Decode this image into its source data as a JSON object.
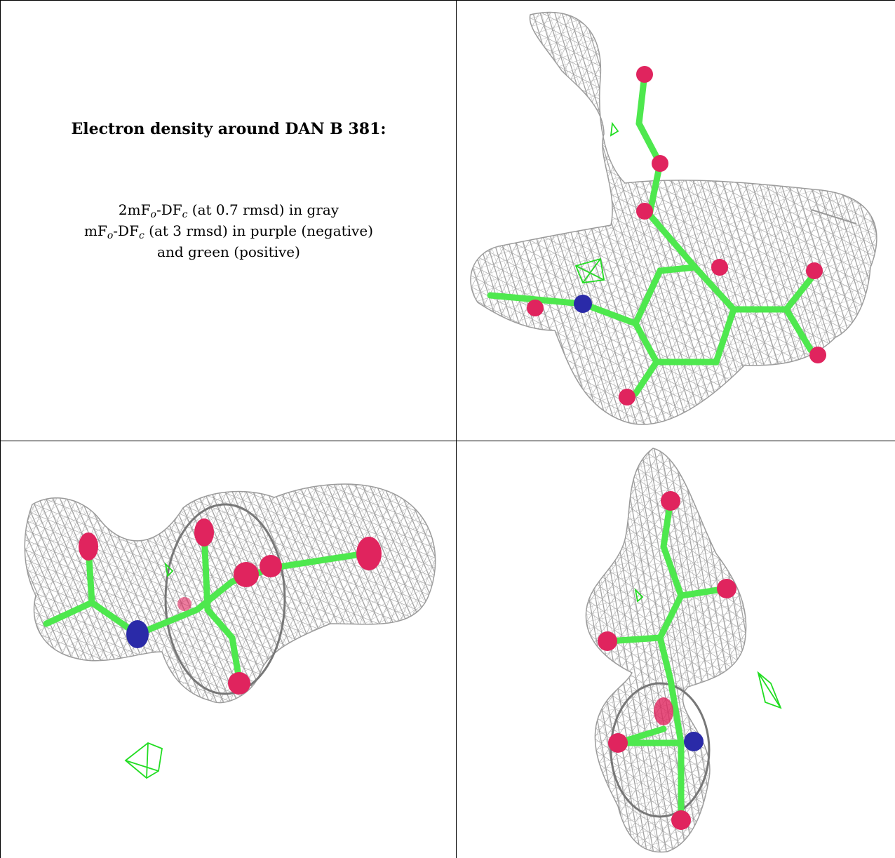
{
  "caption": {
    "title": "Electron density around DAN B 381:",
    "line1": {
      "a": "2mF",
      "sub_o": "o",
      "b": "-DF",
      "sub_c": "c",
      "rest": " (at 0.7 rmsd) in gray"
    },
    "line2": {
      "a": "mF",
      "sub_o": "o",
      "b": "-DF",
      "sub_c": "c",
      "rest": " (at 3 rmsd) in purple (negative)"
    },
    "line3": "and green (positive)"
  },
  "colors": {
    "mesh": "#9a9a9a",
    "carbon": "#4ee84e",
    "oxygen": "#e0245e",
    "nitrogen": "#2a2aa8",
    "positive_density": "#22dd22",
    "border": "#000000"
  },
  "panels": [
    "density-view-top-right",
    "density-view-bottom-left",
    "density-view-bottom-right"
  ]
}
